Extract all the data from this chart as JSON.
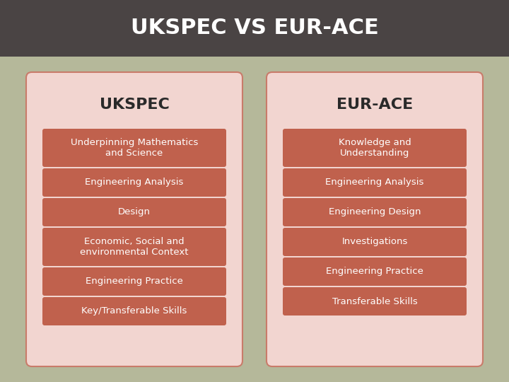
{
  "title": "UKSPEC VS EUR-ACE",
  "title_bg": "#4a4444",
  "title_color": "#ffffff",
  "page_bg": "#b5b89a",
  "card_bg": "#f2d5d0",
  "card_border": "#c97b6a",
  "box_color": "#c0614d",
  "box_text_color": "#ffffff",
  "col1_header": "UKSPEC",
  "col2_header": "EUR-ACE",
  "col1_items": [
    "Underpinning Mathematics\nand Science",
    "Engineering Analysis",
    "Design",
    "Economic, Social and\nenvironmental Context",
    "Engineering Practice",
    "Key/Transferable Skills"
  ],
  "col2_items": [
    "Knowledge and\nUnderstanding",
    "Engineering Analysis",
    "Engineering Design",
    "Investigations",
    "Engineering Practice",
    "Transferable Skills"
  ]
}
